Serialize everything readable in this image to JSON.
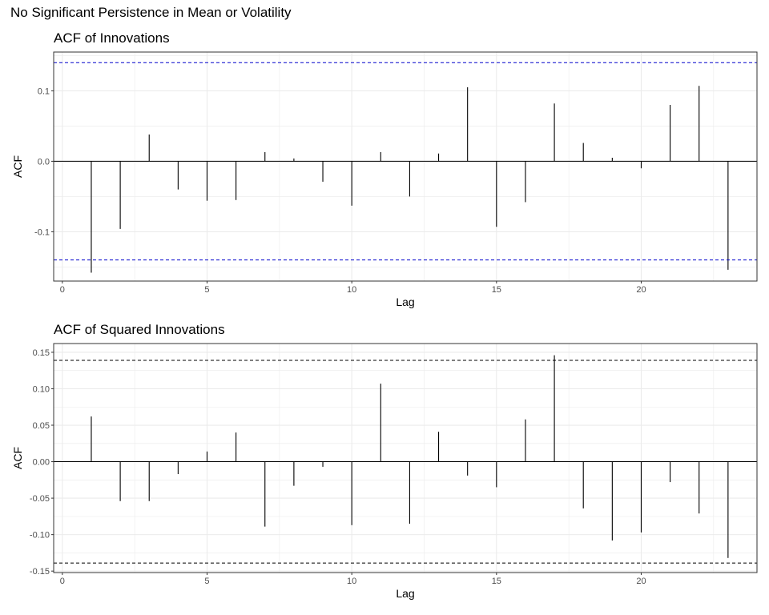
{
  "title": "No Significant Persistence in Mean or Volatility",
  "colors": {
    "significance_line_panel1": "#0000cc",
    "significance_line_panel2": "#000000",
    "bars": "#000000",
    "grid": "#ebebeb",
    "panel_border": "#333333"
  },
  "chart_data": [
    {
      "type": "bar",
      "title": "ACF of Innovations",
      "xlabel": "Lag",
      "ylabel": "ACF",
      "xlim": [
        -0.3,
        24
      ],
      "ylim": [
        -0.17,
        0.155
      ],
      "x_ticks": [
        0,
        5,
        10,
        15,
        20
      ],
      "y_ticks": [
        -0.1,
        0.0,
        0.1
      ],
      "y_tick_labels": [
        "-0.1",
        "0.0",
        "0.1"
      ],
      "significance_bounds": [
        0.14,
        -0.14
      ],
      "grid": true,
      "lags": [
        1,
        2,
        3,
        4,
        5,
        6,
        7,
        8,
        9,
        10,
        11,
        12,
        13,
        14,
        15,
        16,
        17,
        18,
        19,
        20,
        21,
        22,
        23
      ],
      "values": [
        -0.158,
        -0.096,
        0.038,
        -0.04,
        -0.056,
        -0.055,
        0.013,
        0.004,
        -0.029,
        -0.063,
        0.013,
        -0.05,
        0.011,
        0.105,
        -0.093,
        -0.058,
        0.082,
        0.026,
        0.005,
        -0.01,
        0.08,
        0.107,
        -0.154
      ]
    },
    {
      "type": "bar",
      "title": "ACF of Squared Innovations",
      "xlabel": "Lag",
      "ylabel": "ACF",
      "xlim": [
        -0.3,
        24
      ],
      "ylim": [
        -0.152,
        0.162
      ],
      "x_ticks": [
        0,
        5,
        10,
        15,
        20
      ],
      "y_ticks": [
        -0.15,
        -0.1,
        -0.05,
        0.0,
        0.05,
        0.1,
        0.15
      ],
      "y_tick_labels": [
        "-0.15",
        "-0.10",
        "-0.05",
        "0.00",
        "0.05",
        "0.10",
        "0.15"
      ],
      "significance_bounds": [
        0.139,
        -0.139
      ],
      "grid": true,
      "lags": [
        1,
        2,
        3,
        4,
        5,
        6,
        7,
        8,
        9,
        10,
        11,
        12,
        13,
        14,
        15,
        16,
        17,
        18,
        19,
        20,
        21,
        22,
        23
      ],
      "values": [
        0.062,
        -0.054,
        -0.054,
        -0.017,
        0.014,
        0.04,
        -0.089,
        -0.033,
        -0.007,
        -0.087,
        0.107,
        -0.085,
        0.041,
        -0.019,
        -0.035,
        0.058,
        0.146,
        -0.064,
        -0.108,
        -0.097,
        -0.028,
        -0.071,
        -0.132
      ]
    }
  ]
}
